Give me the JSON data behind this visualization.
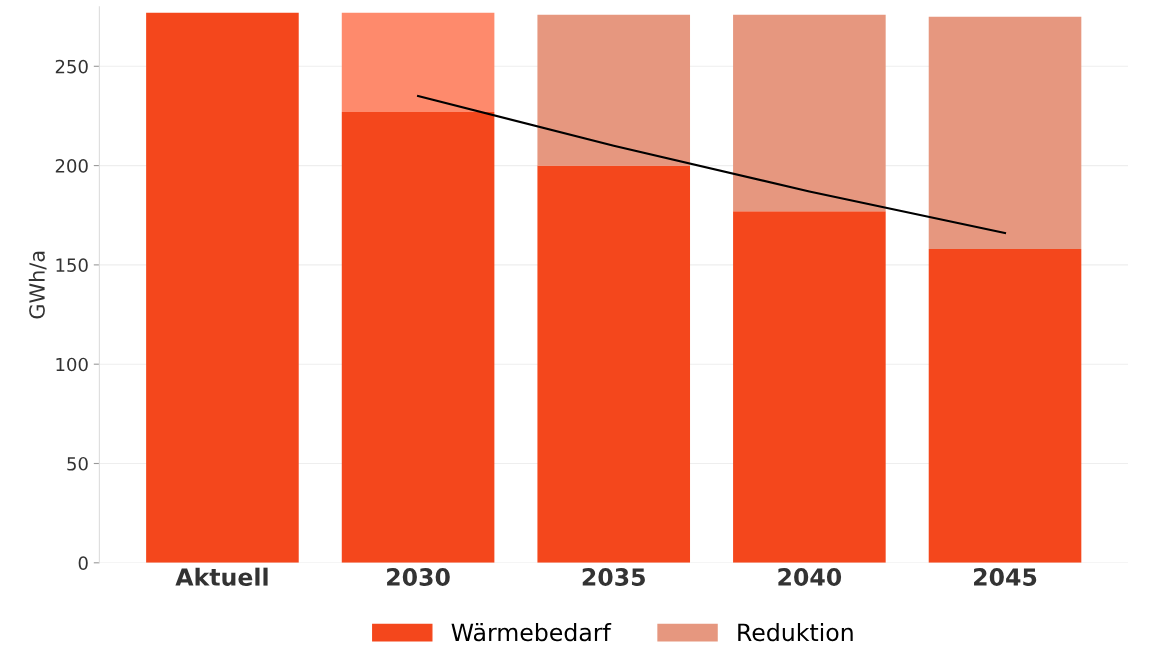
{
  "chart_data": {
    "type": "bar",
    "stacked": true,
    "ylabel": "GWh/a",
    "categories": [
      "Aktuell",
      "2030",
      "2035",
      "2040",
      "2045"
    ],
    "series": [
      {
        "name": "Wärmebedarf",
        "color": "#f4471c",
        "values": [
          277,
          227,
          200,
          177,
          158
        ]
      },
      {
        "name": "Reduktion",
        "color": "#e6977f",
        "colors": [
          "#e6977f",
          "#fe8a6c",
          "#e6977f",
          "#e6977f",
          "#e6977f"
        ],
        "values": [
          null,
          50,
          76,
          99,
          117
        ]
      },
      {
        "type": "line",
        "color": "#000000",
        "values": [
          null,
          235,
          210,
          187,
          166
        ]
      }
    ],
    "ylim": [
      0,
      280
    ],
    "yticks": [
      0,
      50,
      100,
      150,
      200,
      250
    ],
    "grid": "y",
    "legend": "bottom"
  }
}
